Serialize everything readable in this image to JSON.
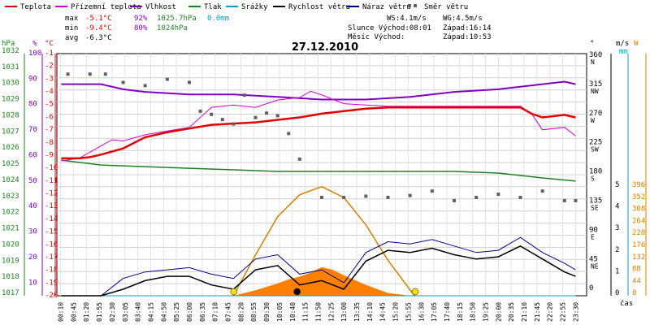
{
  "chart_data": {
    "type": "line",
    "title": "27.12.2010",
    "legend": [
      {
        "name": "Teplota",
        "color": "#e00000"
      },
      {
        "name": "Přízemní teplota",
        "color": "#d000d0"
      },
      {
        "name": "Vlhkost",
        "color": "#8000c0"
      },
      {
        "name": "Tlak",
        "color": "#208020"
      },
      {
        "name": "Srážky",
        "color": "#00a0c0"
      },
      {
        "name": "Rychlost větru",
        "color": "#000000"
      },
      {
        "name": "Náraz větru",
        "color": "#000090"
      },
      {
        "name": "Směr větru",
        "color": "#606060"
      }
    ],
    "stats": {
      "max": {
        "label": "max",
        "temp": "-5.1°C",
        "hum": "92%",
        "press": "1025.7hPa",
        "rain": "0.0mm"
      },
      "min": {
        "label": "min",
        "temp": "-9.4°C",
        "hum": "80%",
        "press": "1024hPa"
      },
      "avg": {
        "label": "avg",
        "temp": "-6.3°C"
      }
    },
    "wind_info": {
      "ws": "WS:4.1m/s",
      "wg": "WG:4.5m/s"
    },
    "sun_moon": {
      "sun": "Slunce Východ:08:01",
      "sun_set": "Západ:16:14",
      "moon": "Měsíc  Východ:",
      "moon_set": "Západ:10:53"
    },
    "axes": {
      "hpa_label": "hPa",
      "pct_label": "%",
      "c_label": "°C",
      "deg_label": "°",
      "ms_label": "m/s",
      "mm_label": "mm",
      "w_label": "W",
      "time_label": "čas",
      "hpa_ticks": [
        "1032",
        "1031",
        "1030",
        "1029",
        "1028",
        "1027",
        "1026",
        "1025",
        "1024",
        "1023",
        "1022",
        "1021",
        "1020",
        "1019",
        "1018",
        "1017"
      ],
      "pct_ticks": [
        "100",
        "90",
        "80",
        "70",
        "60",
        "50",
        "40",
        "30",
        "20",
        "10"
      ],
      "temp_ticks": [
        "-1",
        "-2",
        "-3",
        "-4",
        "-5",
        "-6",
        "-7",
        "-8",
        "-9",
        "-10",
        "-11",
        "-12",
        "-13",
        "-14",
        "-15",
        "-16",
        "-17",
        "-18",
        "-19",
        "-20"
      ],
      "deg_ticks": [
        {
          "v": "360",
          "d": "N"
        },
        {
          "v": "315",
          "d": "NW"
        },
        {
          "v": "270",
          "d": "W"
        },
        {
          "v": "225",
          "d": "SW"
        },
        {
          "v": "180",
          "d": "S"
        },
        {
          "v": "135",
          "d": "SE"
        },
        {
          "v": "90",
          "d": "E"
        },
        {
          "v": "45",
          "d": "NE"
        },
        {
          "v": "0",
          "d": ""
        }
      ],
      "ms_ticks": [
        "5",
        "4",
        "3",
        "2",
        "1",
        "0"
      ],
      "w_ticks": [
        "396",
        "352",
        "308",
        "264",
        "220",
        "176",
        "132",
        "88",
        "44",
        "0"
      ],
      "time_ticks": [
        "00:10",
        "00:45",
        "01:20",
        "01:55",
        "02:30",
        "03:05",
        "03:40",
        "04:15",
        "04:50",
        "05:25",
        "06:00",
        "06:35",
        "07:10",
        "07:45",
        "08:20",
        "08:55",
        "09:30",
        "10:05",
        "10:40",
        "11:15",
        "11:50",
        "12:25",
        "13:00",
        "13:35",
        "14:10",
        "14:45",
        "15:20",
        "15:55",
        "16:30",
        "17:05",
        "17:40",
        "18:15",
        "18:50",
        "19:25",
        "20:00",
        "20:35",
        "21:10",
        "21:45",
        "22:20",
        "22:55",
        "23:30"
      ]
    },
    "series": {
      "temperature": {
        "x": [
          0.2,
          1,
          1.5,
          2,
          3,
          4,
          5,
          6,
          7,
          8,
          9,
          10,
          11,
          12,
          13,
          14,
          15,
          16,
          17,
          18,
          19,
          20,
          21,
          21.5,
          22,
          23,
          23.5
        ],
        "y": [
          -9.3,
          -9.3,
          -9.2,
          -9,
          -8.5,
          -7.6,
          -7.2,
          -6.9,
          -6.6,
          -6.5,
          -6.4,
          -6.2,
          -6,
          -5.7,
          -5.5,
          -5.3,
          -5.2,
          -5.2,
          -5.2,
          -5.2,
          -5.2,
          -5.2,
          -5.2,
          -5.7,
          -6,
          -5.8,
          -6
        ]
      },
      "ground_temp": {
        "x": [
          0.2,
          1,
          2,
          2.5,
          3,
          4,
          5,
          6,
          7,
          8,
          9,
          10,
          11,
          11.5,
          12,
          13,
          14,
          15,
          16,
          17,
          18,
          19,
          20,
          21,
          21.5,
          22,
          23,
          23.5
        ],
        "y": [
          -9.5,
          -9.3,
          -8.3,
          -7.8,
          -7.9,
          -7.4,
          -7.1,
          -6.8,
          -5.2,
          -5,
          -5.2,
          -4.6,
          -4.4,
          -3.9,
          -4.2,
          -4.9,
          -5,
          -5.1,
          -5.1,
          -5.1,
          -5.1,
          -5.1,
          -5.1,
          -5.1,
          -5.7,
          -7,
          -6.8,
          -7.5
        ]
      },
      "humidity": {
        "x": [
          0.2,
          2,
          3,
          4,
          6,
          8,
          10,
          12,
          14,
          16,
          18,
          20,
          22,
          23,
          23.5
        ],
        "y": [
          88,
          88,
          86,
          85,
          84,
          84,
          83,
          82,
          82,
          83,
          85,
          86,
          88,
          89,
          88
        ]
      },
      "pressure": {
        "x": [
          0.2,
          2,
          4,
          6,
          8,
          10,
          12,
          14,
          16,
          18,
          20,
          22,
          23.5
        ],
        "y": [
          1025.4,
          1025.1,
          1025,
          1024.9,
          1024.8,
          1024.7,
          1024.7,
          1024.7,
          1024.7,
          1024.7,
          1024.6,
          1024.3,
          1024.1
        ]
      },
      "rain": {
        "x": [
          0.2,
          23.5
        ],
        "y": [
          0,
          0
        ]
      },
      "wind_speed": {
        "x": [
          0.2,
          2,
          3,
          4,
          5,
          6,
          7,
          8,
          9,
          10,
          11,
          12,
          13,
          14,
          15,
          16,
          17,
          18,
          19,
          20,
          21,
          22,
          23,
          23.5
        ],
        "y": [
          0,
          0,
          0.3,
          0.7,
          0.9,
          0.9,
          0.5,
          0.3,
          1.2,
          1.4,
          0.5,
          0.7,
          0.3,
          1.6,
          2.1,
          2,
          2.2,
          1.9,
          1.7,
          1.8,
          2.3,
          1.7,
          1.1,
          0.9
        ]
      },
      "wind_gust": {
        "x": [
          0.2,
          2,
          3,
          4,
          5,
          6,
          7,
          8,
          9,
          10,
          11,
          12,
          13,
          14,
          15,
          16,
          17,
          18,
          19,
          20,
          21,
          22,
          23,
          23.5
        ],
        "y": [
          0,
          0,
          0.8,
          1.1,
          1.2,
          1.3,
          1,
          0.8,
          1.7,
          1.9,
          1,
          1.2,
          0.6,
          2,
          2.5,
          2.4,
          2.6,
          2.3,
          2,
          2.1,
          2.7,
          2,
          1.5,
          1.2
        ]
      },
      "solar": {
        "x": [
          8,
          9,
          10,
          10.5,
          11,
          11.5,
          12,
          12.5,
          13,
          14,
          15,
          16
        ],
        "y": [
          0,
          20,
          45,
          60,
          70,
          85,
          105,
          95,
          75,
          40,
          10,
          0
        ]
      },
      "wind_dir": {
        "x": [
          0.5,
          1.5,
          2.2,
          3,
          4,
          5,
          6,
          6.5,
          7,
          7.5,
          8,
          8.5,
          9,
          9.5,
          10,
          10.5,
          11,
          12,
          13,
          14,
          15,
          16,
          17,
          18,
          19,
          20,
          21,
          22,
          23,
          23.5
        ],
        "y": [
          333,
          333,
          333,
          320,
          315,
          325,
          320,
          275,
          270,
          262,
          255,
          300,
          265,
          272,
          268,
          240,
          200,
          140,
          140,
          142,
          140,
          143,
          150,
          135,
          140,
          145,
          140,
          150,
          135,
          135
        ]
      },
      "clear_sky_solar": {
        "x": [
          8,
          9,
          10,
          11,
          12,
          13,
          14,
          15,
          16.2
        ],
        "y": [
          0,
          150,
          290,
          370,
          400,
          360,
          260,
          130,
          0
        ]
      }
    },
    "sun_markers": [
      {
        "name": "sunrise",
        "x": "08:01"
      },
      {
        "name": "moonset",
        "x": "10:53"
      },
      {
        "name": "sunset",
        "x": "16:14"
      }
    ]
  }
}
